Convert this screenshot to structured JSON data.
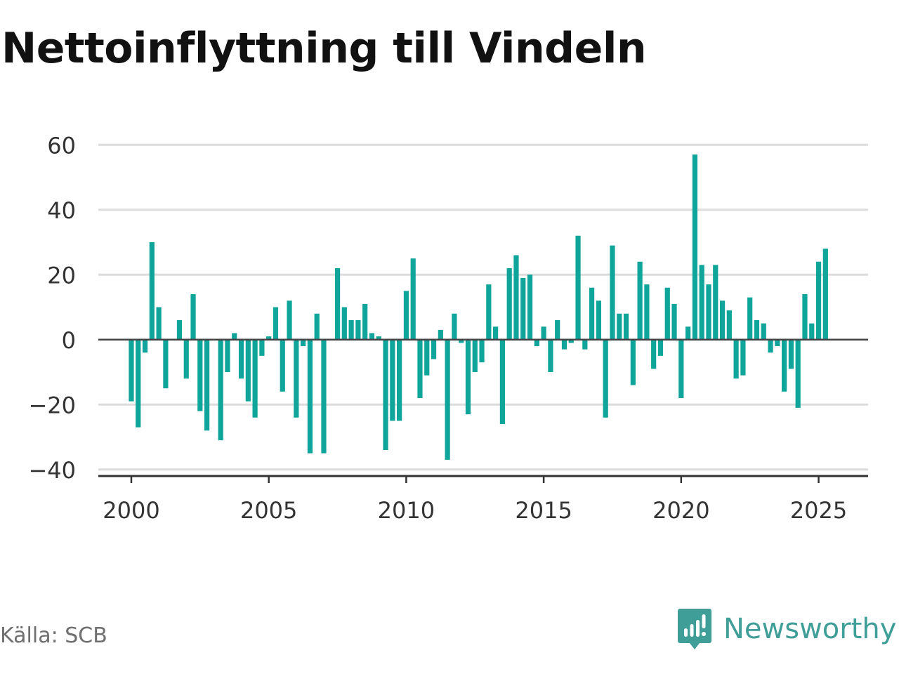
{
  "title": "Nettoinflyttning till Vindeln",
  "source": "Källa: SCB",
  "brand": {
    "name": "Newsworthy",
    "icon": "newsworthy-logo-icon",
    "color": "#3f9e98"
  },
  "chart_data": {
    "type": "bar",
    "title": "Nettoinflyttning till Vindeln",
    "xlabel": "",
    "ylabel": "",
    "frequency": "quarterly",
    "x_start": 2000.0,
    "x_step": 0.25,
    "xlim": [
      1998.8,
      2026.8
    ],
    "ylim": [
      -42,
      62
    ],
    "yticks": [
      -40,
      -20,
      0,
      20,
      40,
      60
    ],
    "ytick_labels": [
      "−40",
      "−20",
      "0",
      "20",
      "40",
      "60"
    ],
    "xticks": [
      2000,
      2005,
      2010,
      2015,
      2020,
      2025
    ],
    "xtick_labels": [
      "2000",
      "2005",
      "2010",
      "2015",
      "2020",
      "2025"
    ],
    "grid": true,
    "bar_color": "#0fa59a",
    "values": [
      -19,
      -27,
      -4,
      30,
      10,
      -15,
      0,
      6,
      -12,
      14,
      -22,
      -28,
      0,
      -31,
      -10,
      2,
      -12,
      -19,
      -24,
      -5,
      1,
      10,
      -16,
      12,
      -24,
      -2,
      -35,
      8,
      -35,
      0,
      22,
      10,
      6,
      6,
      11,
      2,
      1,
      -34,
      -25,
      -25,
      15,
      25,
      -18,
      -11,
      -6,
      3,
      -37,
      8,
      -1,
      -23,
      -10,
      -7,
      17,
      4,
      -26,
      22,
      26,
      19,
      20,
      -2,
      4,
      -10,
      6,
      -3,
      -1,
      32,
      -3,
      16,
      12,
      -24,
      29,
      8,
      8,
      -14,
      24,
      17,
      -9,
      -5,
      16,
      11,
      -18,
      4,
      57,
      23,
      17,
      23,
      12,
      9,
      -12,
      -11,
      13,
      6,
      5,
      -4,
      -2,
      -16,
      -9,
      -21,
      14,
      5,
      24,
      28
    ]
  }
}
